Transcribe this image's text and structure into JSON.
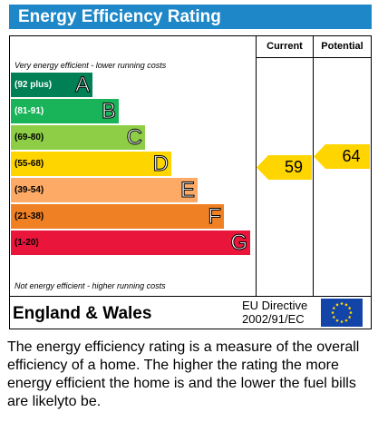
{
  "title": "Energy Efficiency Rating",
  "columns": {
    "current": "Current",
    "potential": "Potential"
  },
  "notes": {
    "top": "Very energy efficient - lower running costs",
    "bottom": "Not energy efficient - higher running costs"
  },
  "chart_data": {
    "type": "bar",
    "title": "Energy Efficiency Rating",
    "bands": [
      {
        "range": "(92 plus)",
        "letter": "A",
        "color": "#008054",
        "text_color": "#ffffff"
      },
      {
        "range": "(81-91)",
        "letter": "B",
        "color": "#19b459",
        "text_color": "#ffffff"
      },
      {
        "range": "(69-80)",
        "letter": "C",
        "color": "#8dce46",
        "text_color": "#000000"
      },
      {
        "range": "(55-68)",
        "letter": "D",
        "color": "#ffd500",
        "text_color": "#000000"
      },
      {
        "range": "(39-54)",
        "letter": "E",
        "color": "#fcaa65",
        "text_color": "#000000"
      },
      {
        "range": "(21-38)",
        "letter": "F",
        "color": "#ef8023",
        "text_color": "#000000"
      },
      {
        "range": "(1-20)",
        "letter": "G",
        "color": "#e9153b",
        "text_color": "#000000"
      }
    ],
    "current": {
      "value": 59,
      "band": "D",
      "color": "#ffd500"
    },
    "potential": {
      "value": 64,
      "band": "D",
      "color": "#ffd500"
    }
  },
  "footer": {
    "region": "England & Wales",
    "directive_line1": "EU Directive",
    "directive_line2": "2002/91/EC"
  },
  "description": "The energy efficiency rating is a measure of the overall efficiency of a home. The higher the rating the more energy efficient the home is and the lower the fuel bills are likelyto be."
}
